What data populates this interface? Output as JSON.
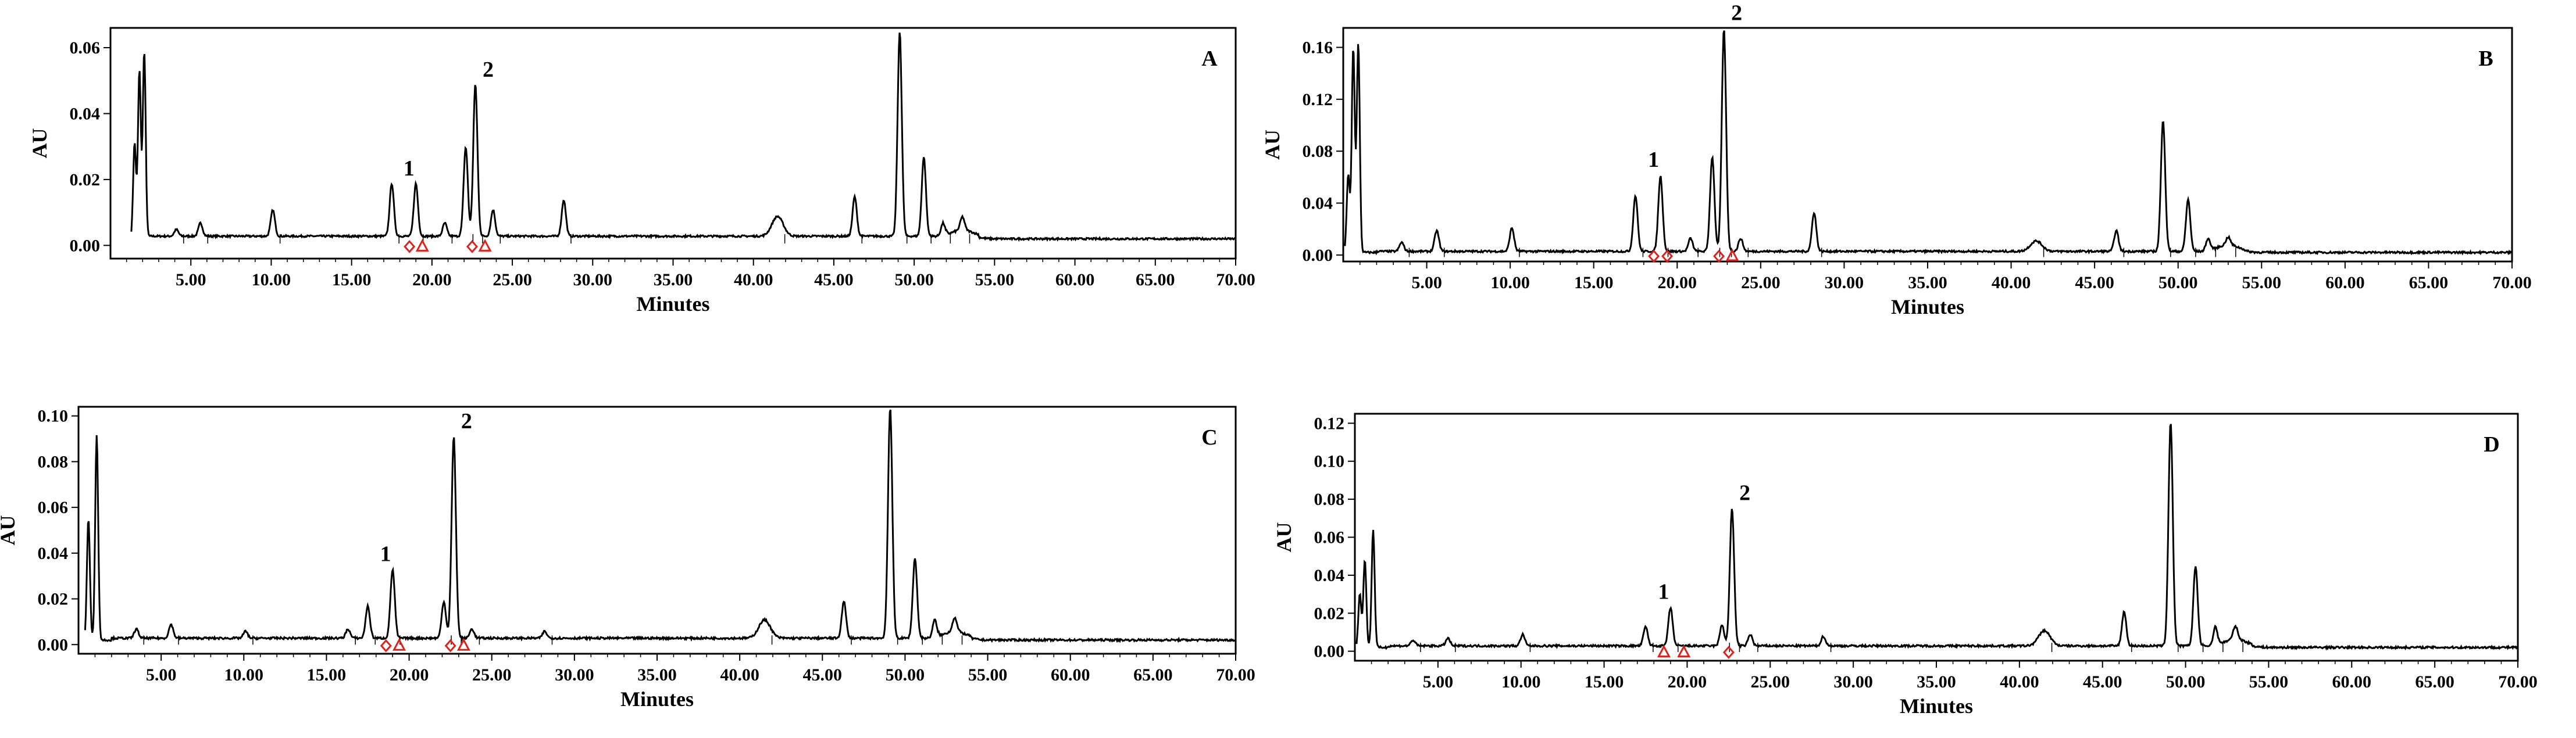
{
  "chart_data": [
    {
      "type": "line",
      "panel": "A",
      "xlabel": "Minutes",
      "ylabel": "AU",
      "xlim": [
        0,
        70
      ],
      "ylim": [
        -0.004,
        0.066
      ],
      "xticks": [
        "5.00",
        "10.00",
        "15.00",
        "20.00",
        "25.00",
        "30.00",
        "35.00",
        "40.00",
        "45.00",
        "50.00",
        "55.00",
        "60.00",
        "65.00",
        "70.00"
      ],
      "yticks": [
        "0.00",
        "0.02",
        "0.04",
        "0.06"
      ],
      "peaks": [
        {
          "x": 1.5,
          "y": 0.031
        },
        {
          "x": 1.8,
          "y": 0.053
        },
        {
          "x": 2.1,
          "y": 0.058
        },
        {
          "x": 4.1,
          "y": 0.004
        },
        {
          "x": 5.6,
          "y": 0.006
        },
        {
          "x": 10.1,
          "y": 0.01
        },
        {
          "x": 17.5,
          "y": 0.018
        },
        {
          "x": 19.0,
          "y": 0.018
        },
        {
          "x": 20.8,
          "y": 0.006
        },
        {
          "x": 22.1,
          "y": 0.029
        },
        {
          "x": 22.7,
          "y": 0.048
        },
        {
          "x": 23.8,
          "y": 0.01
        },
        {
          "x": 28.2,
          "y": 0.013
        },
        {
          "x": 41.5,
          "y": 0.008
        },
        {
          "x": 46.3,
          "y": 0.014
        },
        {
          "x": 49.1,
          "y": 0.064
        },
        {
          "x": 50.6,
          "y": 0.026
        },
        {
          "x": 51.8,
          "y": 0.006
        },
        {
          "x": 53.0,
          "y": 0.006
        }
      ],
      "labeled_peaks": [
        {
          "label": "1",
          "x": 19.0,
          "y": 0.018
        },
        {
          "label": "2",
          "x": 22.7,
          "y": 0.048
        }
      ],
      "markers": [
        {
          "shape": "diamond",
          "x": 18.6
        },
        {
          "shape": "triangle",
          "x": 19.4
        },
        {
          "shape": "diamond",
          "x": 22.5
        },
        {
          "shape": "triangle",
          "x": 23.3
        }
      ]
    },
    {
      "type": "line",
      "panel": "B",
      "xlabel": "Minutes",
      "ylabel": "AU",
      "xlim": [
        0,
        70
      ],
      "ylim": [
        -0.005,
        0.175
      ],
      "xticks": [
        "5.00",
        "10.00",
        "15.00",
        "20.00",
        "25.00",
        "30.00",
        "35.00",
        "40.00",
        "45.00",
        "50.00",
        "55.00",
        "60.00",
        "65.00",
        "70.00"
      ],
      "yticks": [
        "0.00",
        "0.04",
        "0.08",
        "0.12",
        "0.16"
      ],
      "peaks": [
        {
          "x": 0.3,
          "y": 0.062
        },
        {
          "x": 0.6,
          "y": 0.16
        },
        {
          "x": 0.9,
          "y": 0.163
        },
        {
          "x": 3.5,
          "y": 0.009
        },
        {
          "x": 5.6,
          "y": 0.018
        },
        {
          "x": 10.1,
          "y": 0.02
        },
        {
          "x": 17.5,
          "y": 0.045
        },
        {
          "x": 19.0,
          "y": 0.06
        },
        {
          "x": 20.8,
          "y": 0.012
        },
        {
          "x": 22.1,
          "y": 0.075
        },
        {
          "x": 22.8,
          "y": 0.173
        },
        {
          "x": 23.8,
          "y": 0.012
        },
        {
          "x": 28.2,
          "y": 0.032
        },
        {
          "x": 41.5,
          "y": 0.01
        },
        {
          "x": 46.3,
          "y": 0.018
        },
        {
          "x": 49.1,
          "y": 0.103
        },
        {
          "x": 50.6,
          "y": 0.042
        },
        {
          "x": 51.8,
          "y": 0.012
        },
        {
          "x": 53.0,
          "y": 0.008
        }
      ],
      "labeled_peaks": [
        {
          "label": "1",
          "x": 19.0,
          "y": 0.06
        },
        {
          "label": "2",
          "x": 22.8,
          "y": 0.173
        }
      ],
      "markers": [
        {
          "shape": "diamond",
          "x": 18.6
        },
        {
          "shape": "diamond",
          "x": 19.4
        },
        {
          "shape": "diamond",
          "x": 22.5
        },
        {
          "shape": "triangle",
          "x": 23.3
        }
      ]
    },
    {
      "type": "line",
      "panel": "C",
      "xlabel": "Minutes",
      "ylabel": "AU",
      "xlim": [
        0,
        70
      ],
      "ylim": [
        -0.004,
        0.104
      ],
      "xticks": [
        "5.00",
        "10.00",
        "15.00",
        "20.00",
        "25.00",
        "30.00",
        "35.00",
        "40.00",
        "45.00",
        "50.00",
        "55.00",
        "60.00",
        "65.00",
        "70.00"
      ],
      "yticks": [
        "0.00",
        "0.02",
        "0.04",
        "0.06",
        "0.08",
        "0.10"
      ],
      "peaks": [
        {
          "x": 0.6,
          "y": 0.055
        },
        {
          "x": 1.1,
          "y": 0.092
        },
        {
          "x": 3.5,
          "y": 0.006
        },
        {
          "x": 5.6,
          "y": 0.008
        },
        {
          "x": 10.1,
          "y": 0.005
        },
        {
          "x": 16.3,
          "y": 0.006
        },
        {
          "x": 17.5,
          "y": 0.016
        },
        {
          "x": 19.0,
          "y": 0.032
        },
        {
          "x": 22.1,
          "y": 0.018
        },
        {
          "x": 22.7,
          "y": 0.09
        },
        {
          "x": 23.8,
          "y": 0.006
        },
        {
          "x": 28.2,
          "y": 0.005
        },
        {
          "x": 41.5,
          "y": 0.01
        },
        {
          "x": 46.3,
          "y": 0.018
        },
        {
          "x": 49.1,
          "y": 0.103
        },
        {
          "x": 50.6,
          "y": 0.037
        },
        {
          "x": 51.8,
          "y": 0.01
        },
        {
          "x": 53.0,
          "y": 0.008
        }
      ],
      "labeled_peaks": [
        {
          "label": "1",
          "x": 19.0,
          "y": 0.032
        },
        {
          "label": "2",
          "x": 22.7,
          "y": 0.09
        }
      ],
      "markers": [
        {
          "shape": "diamond",
          "x": 18.6
        },
        {
          "shape": "triangle",
          "x": 19.4
        },
        {
          "shape": "diamond",
          "x": 22.5
        },
        {
          "shape": "triangle",
          "x": 23.3
        }
      ]
    },
    {
      "type": "line",
      "panel": "D",
      "xlabel": "Minutes",
      "ylabel": "AU",
      "xlim": [
        0,
        70
      ],
      "ylim": [
        -0.005,
        0.125
      ],
      "xticks": [
        "5.00",
        "10.00",
        "15.00",
        "20.00",
        "25.00",
        "30.00",
        "35.00",
        "40.00",
        "45.00",
        "50.00",
        "55.00",
        "60.00",
        "65.00",
        "70.00"
      ],
      "yticks": [
        "0.00",
        "0.02",
        "0.04",
        "0.06",
        "0.08",
        "0.10",
        "0.12"
      ],
      "peaks": [
        {
          "x": 0.3,
          "y": 0.03
        },
        {
          "x": 0.6,
          "y": 0.048
        },
        {
          "x": 1.1,
          "y": 0.064
        },
        {
          "x": 3.5,
          "y": 0.005
        },
        {
          "x": 5.6,
          "y": 0.006
        },
        {
          "x": 10.1,
          "y": 0.008
        },
        {
          "x": 17.5,
          "y": 0.012
        },
        {
          "x": 19.0,
          "y": 0.022
        },
        {
          "x": 22.1,
          "y": 0.013
        },
        {
          "x": 22.7,
          "y": 0.074
        },
        {
          "x": 23.8,
          "y": 0.008
        },
        {
          "x": 28.2,
          "y": 0.007
        },
        {
          "x": 41.5,
          "y": 0.01
        },
        {
          "x": 46.3,
          "y": 0.02
        },
        {
          "x": 49.1,
          "y": 0.12
        },
        {
          "x": 50.6,
          "y": 0.044
        },
        {
          "x": 51.8,
          "y": 0.012
        },
        {
          "x": 53.0,
          "y": 0.009
        }
      ],
      "labeled_peaks": [
        {
          "label": "1",
          "x": 19.0,
          "y": 0.022
        },
        {
          "label": "2",
          "x": 22.7,
          "y": 0.074
        }
      ],
      "markers": [
        {
          "shape": "triangle",
          "x": 18.6
        },
        {
          "shape": "triangle",
          "x": 19.8
        },
        {
          "shape": "diamond",
          "x": 22.5
        }
      ]
    }
  ],
  "colors": {
    "trace": "#000000",
    "marker": "#e0201a",
    "frame": "#000000"
  }
}
